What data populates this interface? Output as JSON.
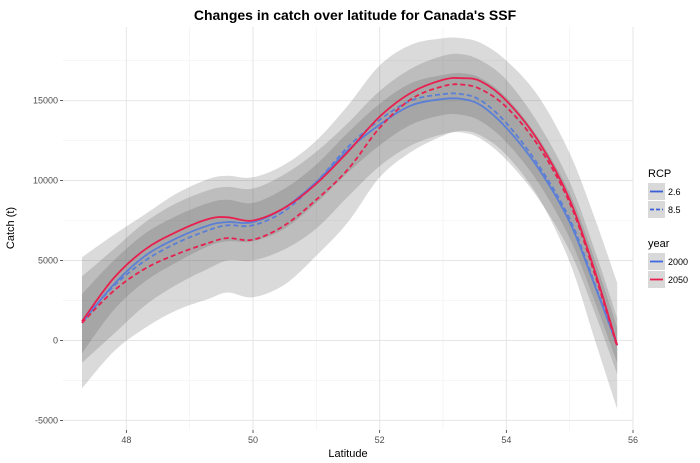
{
  "chart_data": {
    "type": "line",
    "title": "Changes in catch over latitude for Canada's SSF",
    "xlabel": "Latitude",
    "ylabel": "Catch (t)",
    "xlim": [
      47.0,
      56.0
    ],
    "ylim": [
      -5600,
      19600
    ],
    "x_ticks": [
      48,
      50,
      52,
      54,
      56
    ],
    "y_ticks": [
      -5000,
      0,
      5000,
      10000,
      15000
    ],
    "grid": true,
    "legend_position": "right",
    "legends": [
      {
        "title": "RCP",
        "entries": [
          {
            "label": "2.6",
            "line": "solid"
          },
          {
            "label": "8.5",
            "line": "dashed"
          }
        ]
      },
      {
        "title": "year",
        "entries": [
          {
            "label": "2000",
            "color": "#4169e1"
          },
          {
            "label": "2050",
            "color": "#e8204f"
          }
        ]
      }
    ],
    "x": [
      47.3,
      47.8,
      48.3,
      48.8,
      49.3,
      49.6,
      50.0,
      50.5,
      51.0,
      51.5,
      52.0,
      52.5,
      53.0,
      53.3,
      53.6,
      54.0,
      54.5,
      55.0,
      55.4,
      55.75
    ],
    "series": [
      {
        "rcp": "2.6",
        "year": "2000",
        "color": "#5b7fd6",
        "line": "solid",
        "values": [
          1100,
          3500,
          5300,
          6400,
          7200,
          7400,
          7400,
          8300,
          9900,
          11900,
          13500,
          14700,
          15100,
          15100,
          14700,
          13300,
          10800,
          7400,
          3400,
          -300
        ]
      },
      {
        "rcp": "8.5",
        "year": "2000",
        "color": "#5b7fd6",
        "line": "dashed",
        "values": [
          1200,
          3400,
          5000,
          6100,
          6900,
          7200,
          7200,
          8100,
          9900,
          12100,
          13800,
          15000,
          15400,
          15400,
          15000,
          13600,
          11000,
          7600,
          3500,
          -300
        ]
      },
      {
        "rcp": "2.6",
        "year": "2050",
        "color": "#e8204f",
        "line": "solid",
        "values": [
          1200,
          3900,
          5700,
          6800,
          7600,
          7700,
          7500,
          8300,
          9800,
          11800,
          14000,
          15500,
          16300,
          16400,
          16200,
          15000,
          12500,
          8800,
          4300,
          -300
        ]
      },
      {
        "rcp": "8.5",
        "year": "2050",
        "color": "#e8204f",
        "line": "dashed",
        "values": [
          1100,
          3100,
          4500,
          5400,
          6100,
          6400,
          6300,
          7200,
          8800,
          10700,
          13300,
          15100,
          15900,
          16000,
          15700,
          14600,
          12200,
          8600,
          4100,
          -400
        ]
      }
    ],
    "bands": [
      {
        "for": "8.5 / 2050",
        "lower": [
          -3000,
          -700,
          800,
          1900,
          2600,
          3000,
          2700,
          3500,
          5300,
          7400,
          10200,
          11800,
          12800,
          13100,
          12800,
          11600,
          9000,
          4900,
          0,
          -4300
        ],
        "upper": [
          5200,
          6600,
          7900,
          9200,
          10100,
          10300,
          10200,
          11000,
          12500,
          14700,
          17200,
          18500,
          18900,
          18900,
          18600,
          17500,
          15300,
          11700,
          7600,
          3600
        ]
      },
      {
        "for": "8.5 / 2000",
        "lower": [
          -1400,
          400,
          2200,
          3500,
          4500,
          5000,
          5000,
          5700,
          7000,
          9000,
          10900,
          12200,
          12900,
          13000,
          12600,
          11300,
          8900,
          5600,
          1700,
          -2100
        ],
        "upper": [
          4000,
          5700,
          7400,
          8600,
          9400,
          9600,
          9500,
          10400,
          11800,
          13600,
          15600,
          17000,
          17800,
          17900,
          17500,
          16300,
          13600,
          9900,
          5600,
          1400
        ]
      },
      {
        "for": "2.6",
        "lower": [
          -800,
          1900,
          3700,
          4900,
          5900,
          6200,
          6200,
          7000,
          8600,
          10500,
          12200,
          13500,
          14100,
          14100,
          13700,
          12400,
          9900,
          6400,
          2400,
          -1400
        ],
        "upper": [
          2900,
          5000,
          6700,
          7800,
          8600,
          8800,
          8600,
          9500,
          11000,
          13000,
          14800,
          16100,
          16600,
          16700,
          16400,
          15200,
          12700,
          9200,
          5000,
          800
        ]
      }
    ]
  }
}
